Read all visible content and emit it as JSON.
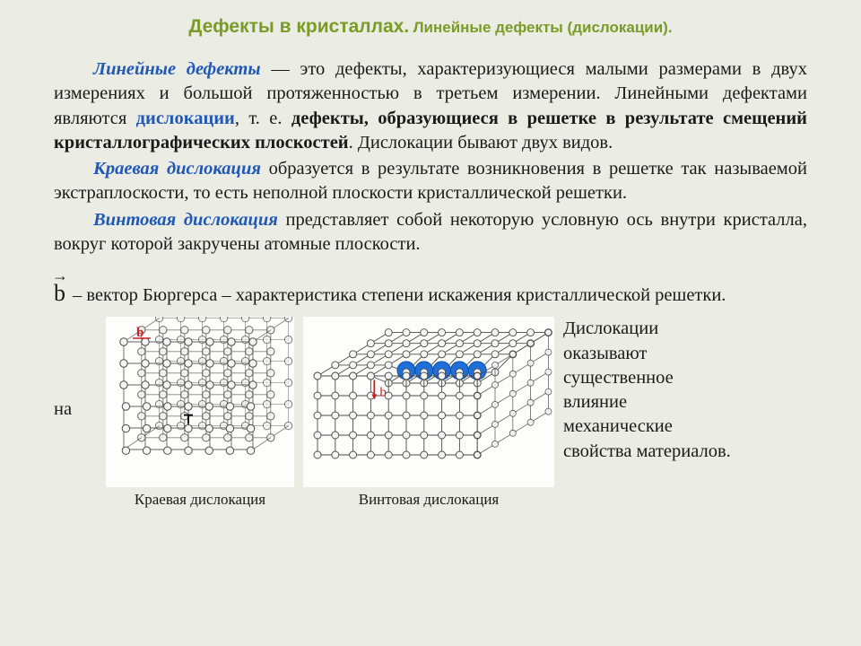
{
  "title": {
    "main": "Дефекты в кристаллах.",
    "sub": "Линейные дефекты (дислокации)."
  },
  "paragraphs": {
    "p1_lead": "Линейные дефекты",
    "p1_a": " — это дефекты, характеризующиеся малыми раз­мерами в двух измерениях и большой протяженностью в третьем измерении. Линейными дефектами являются ",
    "p1_term": "дислокации",
    "p1_b": ", т. е. ",
    "p1_bold": "дефекты, образующиеся в решетке в результате смещений кристаллографических плоскостей",
    "p1_c": ". Дислокации бывают двух видов.",
    "p2_lead": "Краевая дислокация",
    "p2_a": " образуется в результате возникновения в решетке так называемой экстраплоскости, то есть неполной плоскости кристалличе­ской решетки.",
    "p3_lead": "Винтовая дислокация",
    "p3_a": " представляет собой некоторую условную ось внутри кристалла, вокруг которой закручены атомные плоскости.",
    "vector_symbol": "b",
    "vector_text": " – вектор Бюргерса – характеристика степени искажения кристаллической решетки.",
    "na": "на",
    "side": "Дислокации оказывают существенное влияние механические свойства материалов."
  },
  "figures": {
    "edge": {
      "caption": "Краевая дислокация",
      "b_label": "b",
      "b_color": "#cc2020",
      "rows": 6,
      "cols": 7,
      "cell": 24,
      "atom_r": 4.2,
      "stroke": "#4a4a4a",
      "fill_atom": "#f5f5f5",
      "bg": "#fdfdfb"
    },
    "screw": {
      "caption": "Винтовая дислокация",
      "b_label": "b",
      "b_color": "#cc2020",
      "rows": 5,
      "cols": 10,
      "cell": 22,
      "atom_r": 4.0,
      "stroke": "#4a4a4a",
      "fill_atom": "#f5f5f5",
      "bg": "#fdfdfb",
      "highlight_fill": "#1e6fd9",
      "highlight_r": 10
    }
  },
  "colors": {
    "page_bg": "#ebece4",
    "title": "#7a9b26",
    "text": "#1a1a1a",
    "term": "#2058b8"
  }
}
